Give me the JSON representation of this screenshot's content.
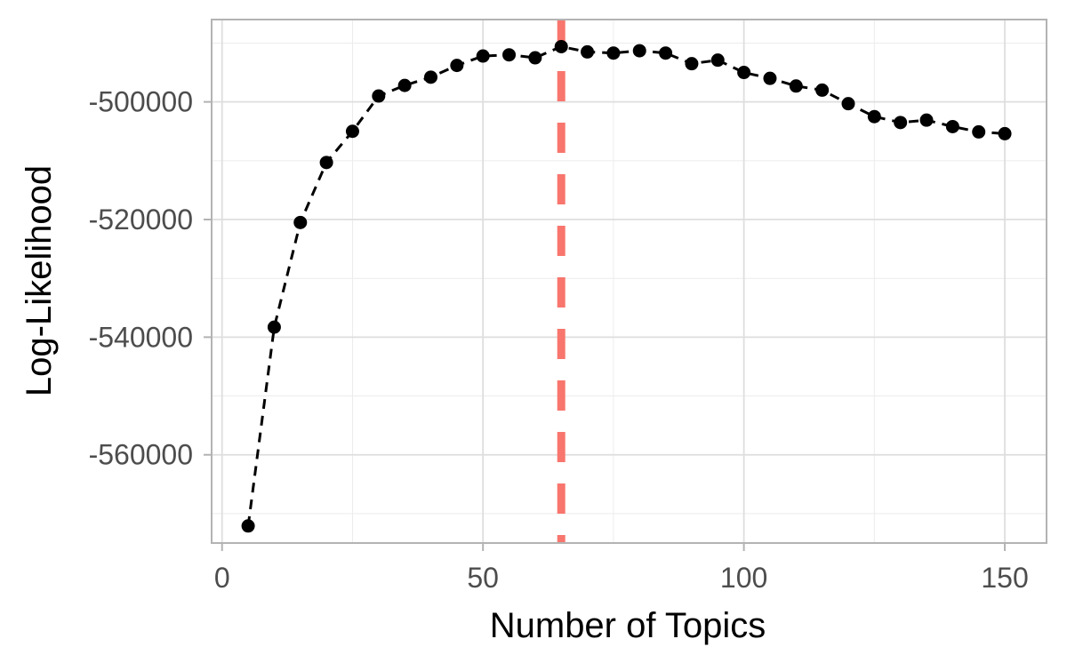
{
  "chart_data": {
    "type": "line",
    "title": "",
    "xlabel": "Number of Topics",
    "ylabel": "Log-Likelihood",
    "xlim": [
      -2,
      158
    ],
    "ylim": [
      -575000,
      -486000
    ],
    "x_ticks": [
      0,
      50,
      100,
      150
    ],
    "x_tick_labels": [
      "0",
      "50",
      "100",
      "150"
    ],
    "x_minor_ticks": [
      25,
      75,
      125
    ],
    "y_ticks": [
      -500000,
      -520000,
      -540000,
      -560000
    ],
    "y_tick_labels": [
      "-500000",
      "-520000",
      "-540000",
      "-560000"
    ],
    "y_minor_ticks": [
      -490000,
      -510000,
      -530000,
      -550000,
      -570000
    ],
    "grid": true,
    "legend": "none",
    "series": [
      {
        "line_style": "dashed",
        "color": "#000000",
        "x": [
          5,
          10,
          15,
          20,
          25,
          30,
          35,
          40,
          45,
          50,
          55,
          60,
          65,
          70,
          75,
          80,
          85,
          90,
          95,
          100,
          105,
          110,
          115,
          120,
          125,
          130,
          135,
          140,
          145,
          150
        ],
        "y": [
          -572100,
          -538300,
          -520500,
          -510300,
          -505000,
          -499000,
          -497200,
          -495800,
          -493800,
          -492200,
          -492000,
          -492500,
          -490600,
          -491500,
          -491700,
          -491300,
          -491700,
          -493500,
          -492900,
          -495000,
          -496000,
          -497300,
          -498000,
          -500300,
          -502500,
          -503500,
          -503100,
          -504200,
          -505100,
          -505400
        ]
      }
    ],
    "reference_lines": [
      {
        "orientation": "vertical",
        "x": 65,
        "color": "#F8766D",
        "line_style": "dashed"
      }
    ]
  }
}
